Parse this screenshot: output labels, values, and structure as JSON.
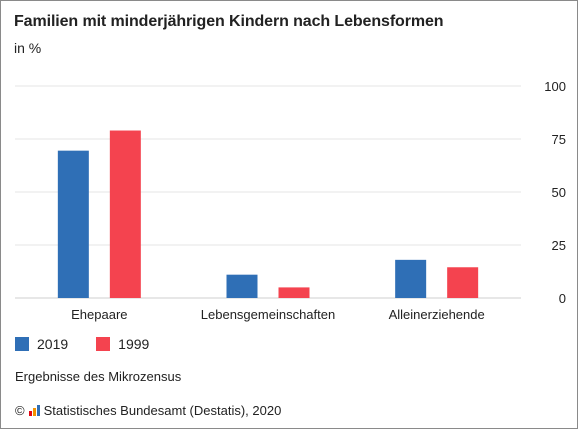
{
  "title": "Familien mit minderjährigen Kindern nach Lebensformen",
  "subtitle": "in %",
  "footnote": "Ergebnisse des Mikrozensus",
  "source": {
    "copyright": "©",
    "text": "Statistisches Bundesamt (Destatis), 2020",
    "logo_icon": "destatis-logo-icon",
    "logo_colors": [
      "#e30613",
      "#f39200",
      "#2f6fb6"
    ]
  },
  "chart_data": {
    "type": "bar",
    "categories": [
      "Ehepaare",
      "Lebensgemeinschaften",
      "Alleinerziehende"
    ],
    "series": [
      {
        "name": "2019",
        "color": "#2f6fb6",
        "values": [
          69.5,
          11,
          18
        ]
      },
      {
        "name": "1999",
        "color": "#f4434f",
        "values": [
          79,
          5,
          14.5
        ]
      }
    ],
    "ylim": [
      0,
      100
    ],
    "yticks": [
      0,
      25,
      50,
      75,
      100
    ],
    "grid": true,
    "legend_position": "bottom-left"
  }
}
